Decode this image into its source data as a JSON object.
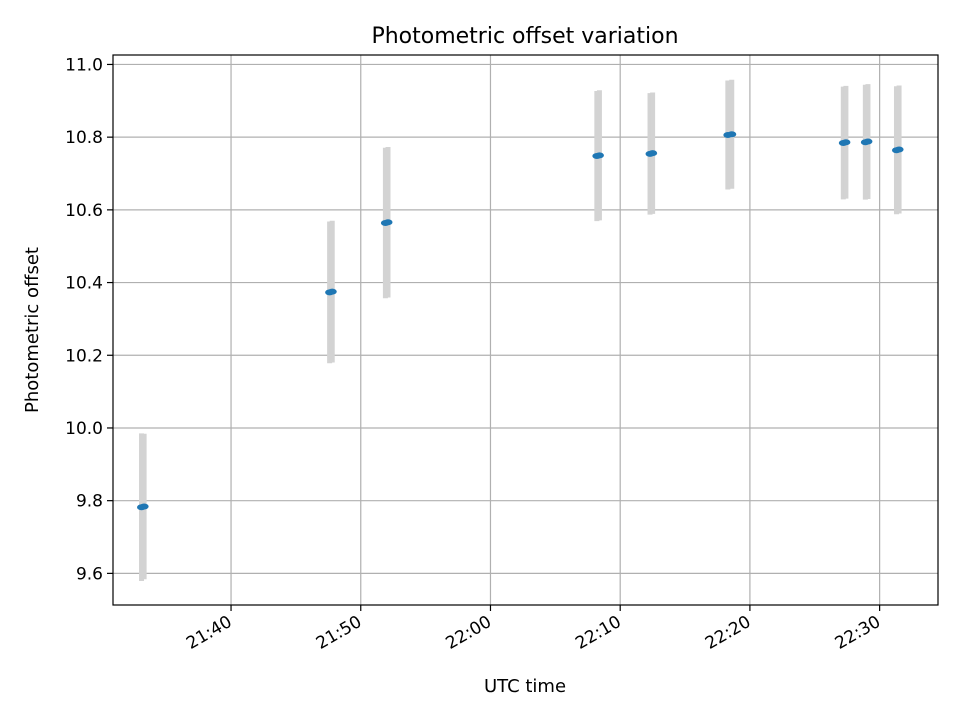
{
  "chart_data": {
    "type": "scatter",
    "title": "Photometric offset variation",
    "xlabel": "UTC time",
    "ylabel": "Photometric offset",
    "x_ticks": [
      "21:40",
      "21:50",
      "22:00",
      "22:10",
      "22:20",
      "22:30"
    ],
    "x_tick_minutes": [
      1300,
      1310,
      1320,
      1330,
      1340,
      1350
    ],
    "xlim": [
      "21:30.9",
      "22:34.5"
    ],
    "y_ticks": [
      "9.6",
      "9.8",
      "10.0",
      "10.2",
      "10.4",
      "10.6",
      "10.8",
      "11.0"
    ],
    "y_tick_values": [
      9.6,
      9.8,
      10.0,
      10.2,
      10.4,
      10.6,
      10.8,
      11.0
    ],
    "ylim": [
      9.513,
      11.026
    ],
    "grid": true,
    "legend": "none",
    "colors": {
      "marker": "#1f77b4",
      "errorbar": "#d3d3d3",
      "grid": "#b0b0b0"
    },
    "points": [
      {
        "time": "21:33.1",
        "y": 9.782,
        "yerr": 0.203
      },
      {
        "time": "21:33.3",
        "y": 9.784,
        "yerr": 0.2
      },
      {
        "time": "21:47.6",
        "y": 10.373,
        "yerr": 0.195
      },
      {
        "time": "21:47.8",
        "y": 10.375,
        "yerr": 0.195
      },
      {
        "time": "21:51.9",
        "y": 10.564,
        "yerr": 0.207
      },
      {
        "time": "21:52.1",
        "y": 10.566,
        "yerr": 0.207
      },
      {
        "time": "22:08.2",
        "y": 10.748,
        "yerr": 0.179
      },
      {
        "time": "22:08.4",
        "y": 10.75,
        "yerr": 0.179
      },
      {
        "time": "22:12.3",
        "y": 10.754,
        "yerr": 0.167
      },
      {
        "time": "22:12.5",
        "y": 10.756,
        "yerr": 0.167
      },
      {
        "time": "22:18.3",
        "y": 10.806,
        "yerr": 0.15
      },
      {
        "time": "22:18.6",
        "y": 10.808,
        "yerr": 0.15
      },
      {
        "time": "22:27.2",
        "y": 10.784,
        "yerr": 0.155
      },
      {
        "time": "22:27.4",
        "y": 10.786,
        "yerr": 0.155
      },
      {
        "time": "22:28.9",
        "y": 10.786,
        "yerr": 0.158
      },
      {
        "time": "22:29.1",
        "y": 10.788,
        "yerr": 0.158
      },
      {
        "time": "22:31.3",
        "y": 10.764,
        "yerr": 0.176
      },
      {
        "time": "22:31.5",
        "y": 10.766,
        "yerr": 0.176
      }
    ]
  }
}
